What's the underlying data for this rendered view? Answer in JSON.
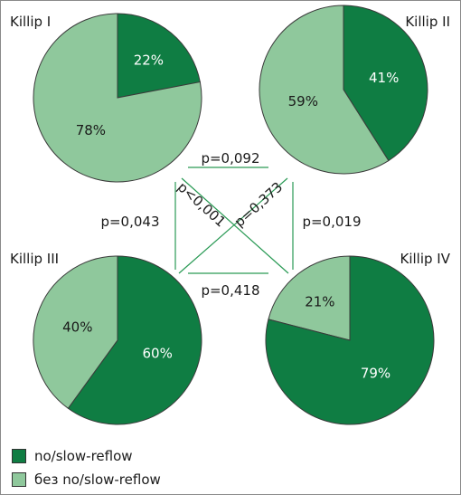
{
  "colors": {
    "no_slow_reflow": "#0f7d43",
    "without": "#8fc89c",
    "connector": "#2a9a55"
  },
  "legend": {
    "items": [
      "no/slow-reflow",
      "без no/slow-reflow"
    ]
  },
  "chart_data": {
    "type": "pie",
    "charts": [
      {
        "title": "Killip I",
        "slices": [
          {
            "category": "no/slow-reflow",
            "value": 22,
            "label": "22%"
          },
          {
            "category": "без no/slow-reflow",
            "value": 78,
            "label": "78%"
          }
        ]
      },
      {
        "title": "Killip II",
        "slices": [
          {
            "category": "no/slow-reflow",
            "value": 41,
            "label": "41%"
          },
          {
            "category": "без no/slow-reflow",
            "value": 59,
            "label": "59%"
          }
        ]
      },
      {
        "title": "Killip III",
        "slices": [
          {
            "category": "no/slow-reflow",
            "value": 60,
            "label": "60%"
          },
          {
            "category": "без no/slow-reflow",
            "value": 40,
            "label": "40%"
          }
        ]
      },
      {
        "title": "Killip IV",
        "slices": [
          {
            "category": "no/slow-reflow",
            "value": 79,
            "label": "79%"
          },
          {
            "category": "без no/slow-reflow",
            "value": 21,
            "label": "21%"
          }
        ]
      }
    ],
    "comparisons": [
      {
        "pair": [
          "Killip I",
          "Killip II"
        ],
        "label": "p=0,092"
      },
      {
        "pair": [
          "Killip III",
          "Killip IV"
        ],
        "label": "p=0,418"
      },
      {
        "pair": [
          "Killip I",
          "Killip III"
        ],
        "label": "p=0,043"
      },
      {
        "pair": [
          "Killip II",
          "Killip IV"
        ],
        "label": "p=0,019"
      },
      {
        "pair": [
          "Killip I",
          "Killip IV"
        ],
        "label": "p<0,001"
      },
      {
        "pair": [
          "Killip II",
          "Killip III"
        ],
        "label": "p=0,373"
      }
    ]
  }
}
